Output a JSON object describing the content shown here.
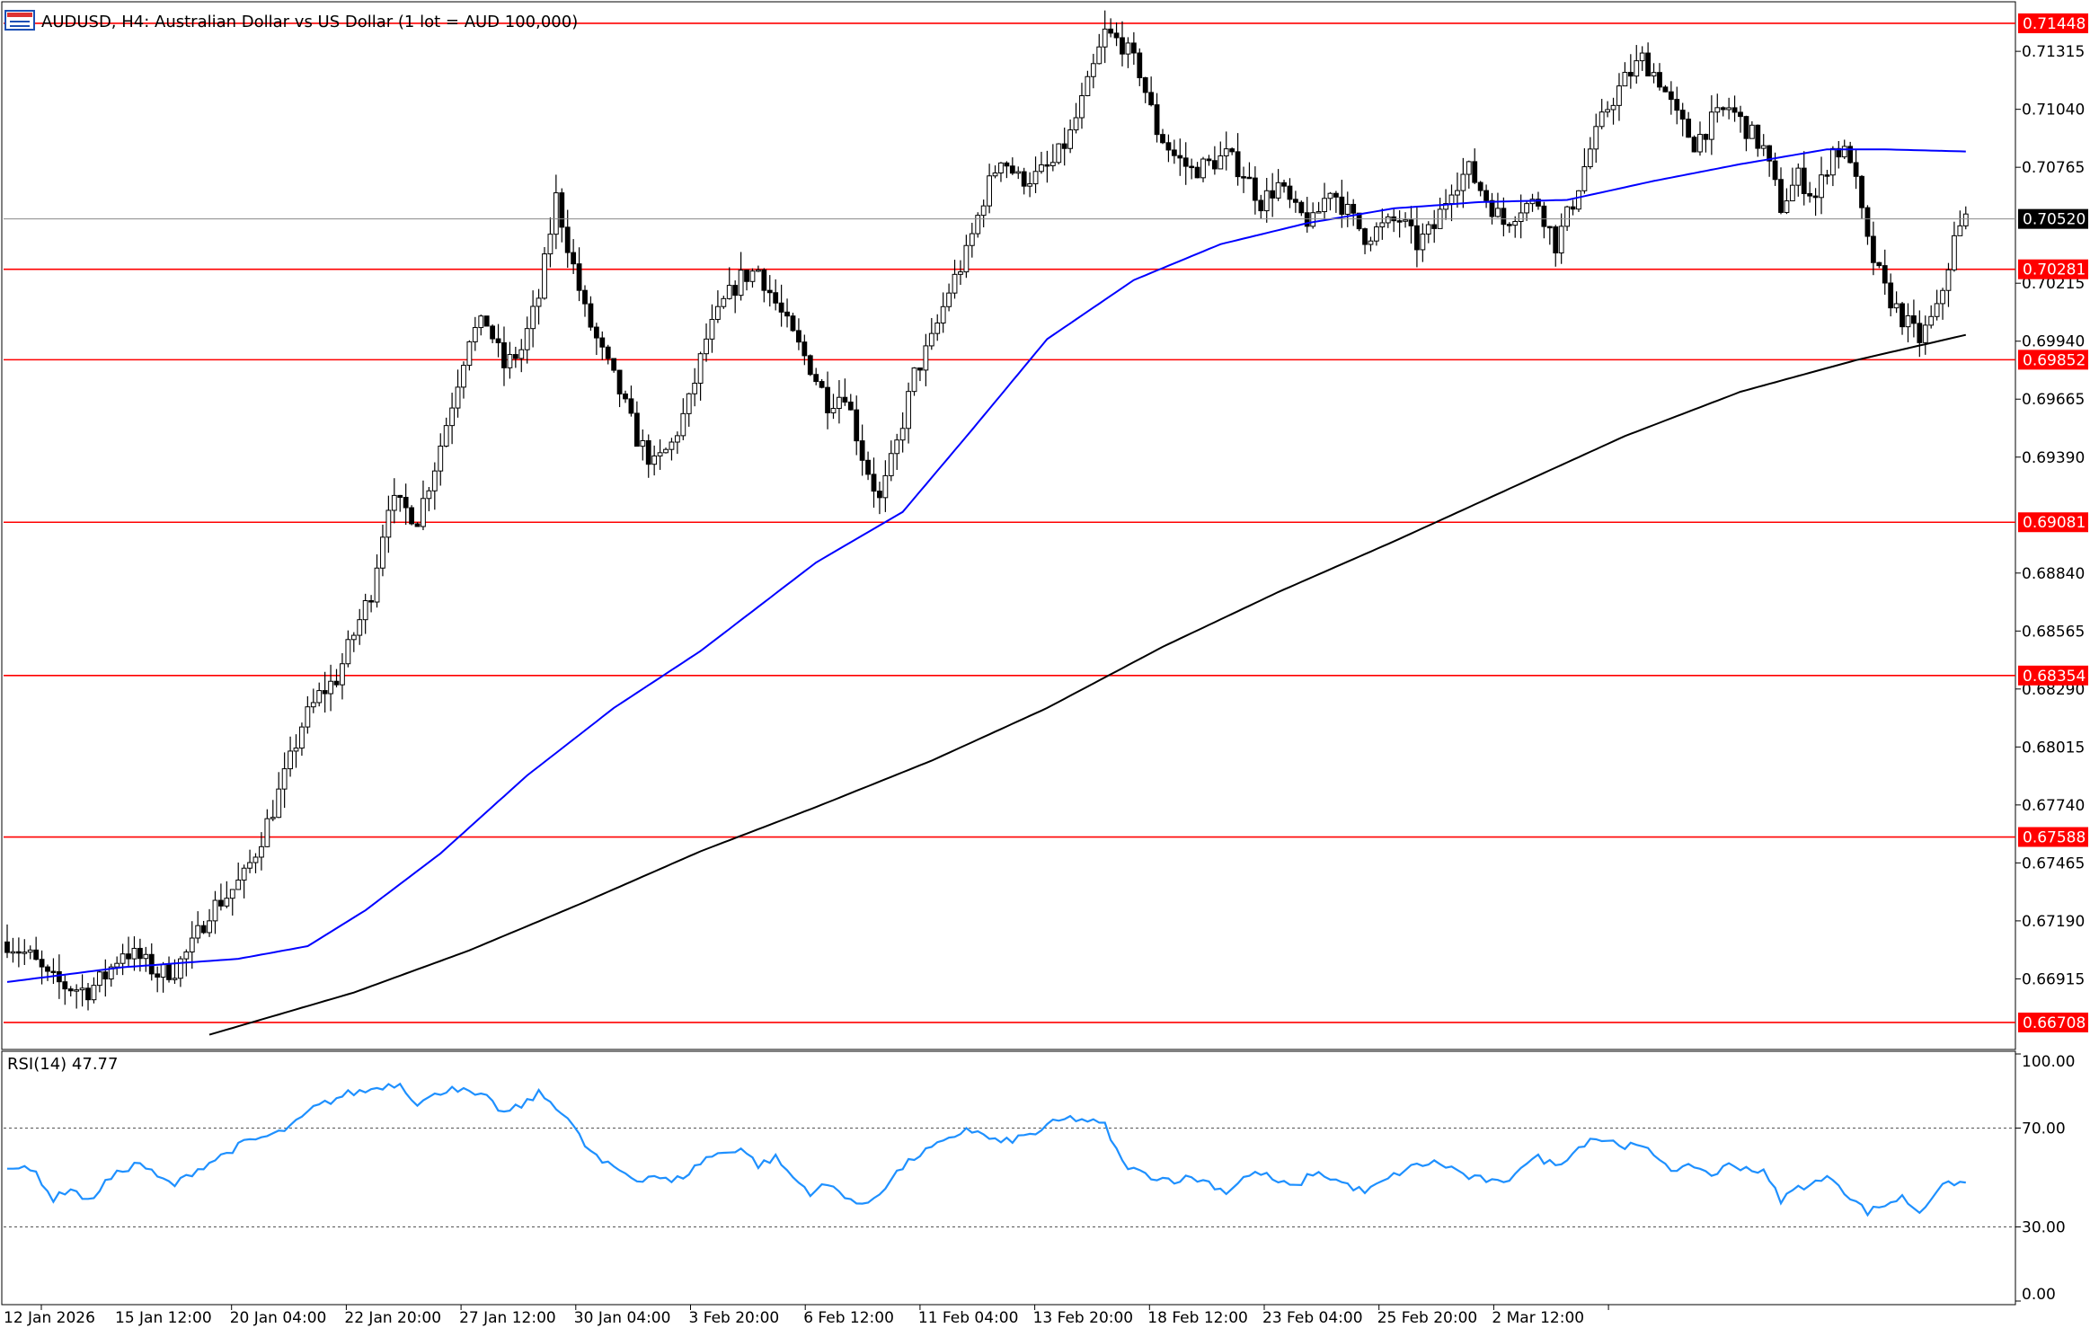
{
  "header": {
    "symbol": "AUDUSD",
    "timeframe": "H4",
    "description": "Australian Dollar vs US Dollar (1 lot = AUD 100,000)",
    "title_text": "AUDUSD, H4:  Australian Dollar vs US Dollar (1 lot = AUD 100,000)"
  },
  "colors": {
    "background": "#ffffff",
    "level_line": "#ff0000",
    "ma_fast": "#0000ff",
    "ma_slow": "#000000",
    "rsi_line": "#1e90ff",
    "bull_candle_body": "#ffffff",
    "bear_candle_body": "#000000"
  },
  "chart_data": {
    "type": "candlestick",
    "price_axis_ticks": [
      "0.71315",
      "0.71040",
      "0.70765",
      "0.70215",
      "0.69940",
      "0.69665",
      "0.69390",
      "0.68840",
      "0.68565",
      "0.68290",
      "0.68015",
      "0.67740",
      "0.67465",
      "0.67190",
      "0.66915"
    ],
    "ylim": [
      0.6658,
      0.7155
    ],
    "time_axis_labels": [
      "12 Jan 2026",
      "15 Jan 12:00",
      "20 Jan 04:00",
      "22 Jan 20:00",
      "27 Jan 12:00",
      "30 Jan 04:00",
      "3 Feb 20:00",
      "6 Feb 12:00",
      "11 Feb 04:00",
      "13 Feb 20:00",
      "18 Feb 12:00",
      "23 Feb 04:00",
      "25 Feb 20:00",
      "2 Mar 12:00"
    ],
    "horizontal_levels": [
      "0.71448",
      "0.70281",
      "0.69852",
      "0.69081",
      "0.68354",
      "0.67588",
      "0.66708"
    ],
    "current_price": "0.70520",
    "close_path": [
      [
        0,
        0.6709
      ],
      [
        4,
        0.6702
      ],
      [
        7,
        0.6692
      ],
      [
        10,
        0.6688
      ],
      [
        14,
        0.6686
      ],
      [
        17,
        0.6693
      ],
      [
        20,
        0.6705
      ],
      [
        23,
        0.6701
      ],
      [
        26,
        0.6694
      ],
      [
        29,
        0.6696
      ],
      [
        32,
        0.6707
      ],
      [
        35,
        0.6724
      ],
      [
        38,
        0.6731
      ],
      [
        41,
        0.674
      ],
      [
        43,
        0.6752
      ],
      [
        46,
        0.6772
      ],
      [
        49,
        0.6795
      ],
      [
        51,
        0.6812
      ],
      [
        54,
        0.6826
      ],
      [
        57,
        0.6834
      ],
      [
        60,
        0.6855
      ],
      [
        63,
        0.6875
      ],
      [
        66,
        0.6918
      ],
      [
        69,
        0.6914
      ],
      [
        71,
        0.691
      ],
      [
        74,
        0.6935
      ],
      [
        77,
        0.6965
      ],
      [
        80,
        0.6997
      ],
      [
        83,
        0.7003
      ],
      [
        86,
        0.6982
      ],
      [
        89,
        0.699
      ],
      [
        92,
        0.7015
      ],
      [
        95,
        0.7062
      ],
      [
        97,
        0.704
      ],
      [
        100,
        0.7008
      ],
      [
        103,
        0.6988
      ],
      [
        106,
        0.697
      ],
      [
        109,
        0.6948
      ],
      [
        112,
        0.6935
      ],
      [
        115,
        0.6945
      ],
      [
        118,
        0.6965
      ],
      [
        121,
        0.6995
      ],
      [
        124,
        0.7012
      ],
      [
        127,
        0.7024
      ],
      [
        130,
        0.7028
      ],
      [
        133,
        0.7012
      ],
      [
        136,
        0.6996
      ],
      [
        139,
        0.6982
      ],
      [
        142,
        0.6965
      ],
      [
        145,
        0.697
      ],
      [
        148,
        0.694
      ],
      [
        151,
        0.6918
      ],
      [
        154,
        0.6945
      ],
      [
        157,
        0.6978
      ],
      [
        160,
        0.6994
      ],
      [
        163,
        0.7018
      ],
      [
        166,
        0.7035
      ],
      [
        169,
        0.7062
      ],
      [
        172,
        0.7082
      ],
      [
        175,
        0.7071
      ],
      [
        178,
        0.7072
      ],
      [
        181,
        0.7078
      ],
      [
        184,
        0.7092
      ],
      [
        187,
        0.7115
      ],
      [
        190,
        0.714
      ],
      [
        193,
        0.7135
      ],
      [
        196,
        0.7122
      ],
      [
        199,
        0.7094
      ],
      [
        202,
        0.7082
      ],
      [
        205,
        0.7075
      ],
      [
        208,
        0.7078
      ],
      [
        211,
        0.7082
      ],
      [
        214,
        0.7074
      ],
      [
        217,
        0.706
      ],
      [
        220,
        0.7068
      ],
      [
        223,
        0.7055
      ],
      [
        226,
        0.705
      ],
      [
        229,
        0.7067
      ],
      [
        232,
        0.7055
      ],
      [
        235,
        0.7044
      ],
      [
        238,
        0.7048
      ],
      [
        241,
        0.7052
      ],
      [
        244,
        0.704
      ],
      [
        247,
        0.7048
      ],
      [
        250,
        0.7068
      ],
      [
        253,
        0.7075
      ],
      [
        256,
        0.7062
      ],
      [
        259,
        0.705
      ],
      [
        262,
        0.7058
      ],
      [
        265,
        0.706
      ],
      [
        268,
        0.704
      ],
      [
        271,
        0.706
      ],
      [
        274,
        0.7085
      ],
      [
        277,
        0.7105
      ],
      [
        280,
        0.7118
      ],
      [
        283,
        0.7128
      ],
      [
        286,
        0.7118
      ],
      [
        289,
        0.71
      ],
      [
        292,
        0.7088
      ],
      [
        295,
        0.7098
      ],
      [
        298,
        0.7105
      ],
      [
        301,
        0.7095
      ],
      [
        304,
        0.7085
      ],
      [
        307,
        0.7058
      ],
      [
        310,
        0.7072
      ],
      [
        313,
        0.7062
      ],
      [
        316,
        0.7085
      ],
      [
        319,
        0.7082
      ],
      [
        322,
        0.704
      ],
      [
        325,
        0.7018
      ],
      [
        328,
        0.7005
      ],
      [
        331,
        0.6995
      ],
      [
        334,
        0.7008
      ],
      [
        337,
        0.7042
      ],
      [
        339,
        0.7052
      ]
    ],
    "moving_averages": [
      {
        "color": "#0000ff",
        "points": [
          [
            0,
            0.669
          ],
          [
            20,
            0.6697
          ],
          [
            40,
            0.6701
          ],
          [
            52,
            0.6707
          ],
          [
            62,
            0.6724
          ],
          [
            75,
            0.6751
          ],
          [
            90,
            0.6788
          ],
          [
            105,
            0.682
          ],
          [
            120,
            0.6847
          ],
          [
            140,
            0.6889
          ],
          [
            155,
            0.6913
          ],
          [
            167,
            0.6952
          ],
          [
            180,
            0.6995
          ],
          [
            195,
            0.7023
          ],
          [
            210,
            0.704
          ],
          [
            225,
            0.705
          ],
          [
            240,
            0.7057
          ],
          [
            255,
            0.706
          ],
          [
            270,
            0.7061
          ],
          [
            285,
            0.707
          ],
          [
            300,
            0.7078
          ],
          [
            315,
            0.7085
          ],
          [
            325,
            0.7085
          ],
          [
            339,
            0.7084
          ]
        ]
      },
      {
        "color": "#000000",
        "points": [
          [
            35,
            0.6665
          ],
          [
            60,
            0.6685
          ],
          [
            80,
            0.6705
          ],
          [
            100,
            0.6728
          ],
          [
            120,
            0.6752
          ],
          [
            140,
            0.6773
          ],
          [
            160,
            0.6795
          ],
          [
            180,
            0.682
          ],
          [
            200,
            0.6849
          ],
          [
            220,
            0.6875
          ],
          [
            240,
            0.6899
          ],
          [
            260,
            0.6924
          ],
          [
            280,
            0.6949
          ],
          [
            300,
            0.697
          ],
          [
            320,
            0.6985
          ],
          [
            339,
            0.6997
          ]
        ]
      }
    ],
    "rsi": {
      "label": "RSI(14) 47.77",
      "name": "RSI(14)",
      "value": "47.77",
      "levels": [
        30,
        70
      ],
      "ticks": [
        "100.00",
        "70.00",
        "30.00",
        "0.00"
      ],
      "ylim": [
        0,
        100
      ],
      "points": [
        [
          0,
          55
        ],
        [
          5,
          52
        ],
        [
          8,
          41
        ],
        [
          11,
          46
        ],
        [
          14,
          40
        ],
        [
          17,
          48
        ],
        [
          20,
          53
        ],
        [
          23,
          56
        ],
        [
          26,
          50
        ],
        [
          29,
          47
        ],
        [
          32,
          52
        ],
        [
          35,
          56
        ],
        [
          38,
          60
        ],
        [
          41,
          64
        ],
        [
          44,
          66
        ],
        [
          47,
          68
        ],
        [
          50,
          72
        ],
        [
          53,
          78
        ],
        [
          56,
          81
        ],
        [
          59,
          84
        ],
        [
          62,
          85
        ],
        [
          65,
          87
        ],
        [
          68,
          88
        ],
        [
          71,
          80
        ],
        [
          74,
          83
        ],
        [
          77,
          87
        ],
        [
          80,
          84
        ],
        [
          83,
          82
        ],
        [
          86,
          76
        ],
        [
          89,
          79
        ],
        [
          92,
          84
        ],
        [
          95,
          79
        ],
        [
          97,
          74
        ],
        [
          100,
          63
        ],
        [
          103,
          56
        ],
        [
          106,
          53
        ],
        [
          109,
          49
        ],
        [
          112,
          51
        ],
        [
          115,
          48
        ],
        [
          118,
          52
        ],
        [
          121,
          58
        ],
        [
          124,
          60
        ],
        [
          127,
          62
        ],
        [
          130,
          55
        ],
        [
          133,
          58
        ],
        [
          136,
          50
        ],
        [
          139,
          44
        ],
        [
          142,
          47
        ],
        [
          145,
          43
        ],
        [
          148,
          38
        ],
        [
          151,
          44
        ],
        [
          154,
          52
        ],
        [
          157,
          58
        ],
        [
          160,
          62
        ],
        [
          163,
          65
        ],
        [
          166,
          70
        ],
        [
          169,
          67
        ],
        [
          172,
          64
        ],
        [
          175,
          66
        ],
        [
          178,
          68
        ],
        [
          181,
          72
        ],
        [
          184,
          74
        ],
        [
          187,
          73
        ],
        [
          190,
          71
        ],
        [
          193,
          56
        ],
        [
          196,
          52
        ],
        [
          199,
          50
        ],
        [
          202,
          49
        ],
        [
          205,
          50
        ],
        [
          208,
          48
        ],
        [
          211,
          44
        ],
        [
          214,
          50
        ],
        [
          217,
          52
        ],
        [
          220,
          48
        ],
        [
          223,
          46
        ],
        [
          226,
          52
        ],
        [
          229,
          50
        ],
        [
          232,
          47
        ],
        [
          235,
          44
        ],
        [
          238,
          48
        ],
        [
          241,
          52
        ],
        [
          244,
          55
        ],
        [
          247,
          56
        ],
        [
          250,
          54
        ],
        [
          253,
          50
        ],
        [
          256,
          49
        ],
        [
          259,
          47
        ],
        [
          262,
          55
        ],
        [
          265,
          58
        ],
        [
          268,
          55
        ],
        [
          271,
          60
        ],
        [
          274,
          66
        ],
        [
          277,
          65
        ],
        [
          280,
          63
        ],
        [
          283,
          62
        ],
        [
          286,
          58
        ],
        [
          289,
          52
        ],
        [
          292,
          55
        ],
        [
          295,
          51
        ],
        [
          298,
          55
        ],
        [
          301,
          54
        ],
        [
          304,
          52
        ],
        [
          307,
          41
        ],
        [
          310,
          46
        ],
        [
          313,
          48
        ],
        [
          316,
          50
        ],
        [
          319,
          42
        ],
        [
          322,
          36
        ],
        [
          325,
          39
        ],
        [
          328,
          42
        ],
        [
          331,
          36
        ],
        [
          334,
          45
        ],
        [
          337,
          48
        ],
        [
          339,
          47.77
        ]
      ]
    }
  }
}
